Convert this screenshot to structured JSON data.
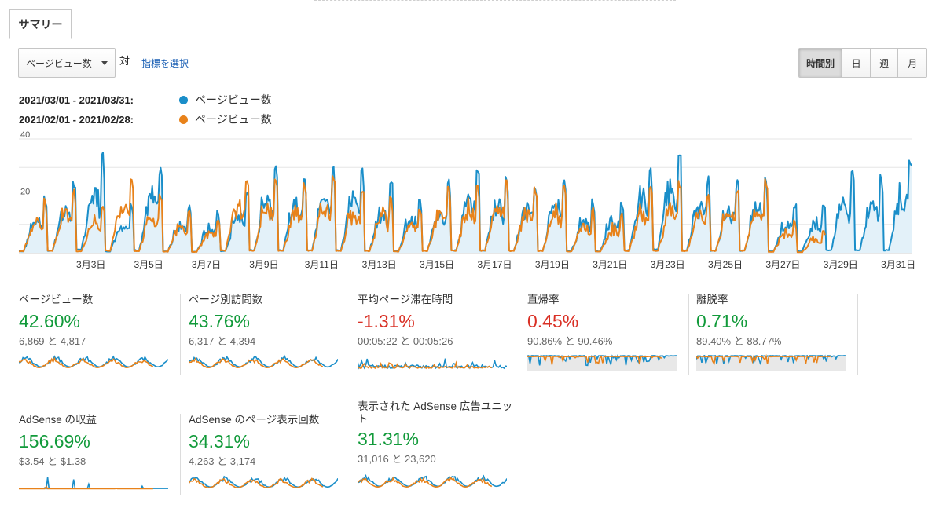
{
  "tabs": [
    {
      "label": "サマリー",
      "active": true
    }
  ],
  "controls": {
    "metric": "ページビュー数",
    "vs": "対",
    "select_metric": "指標を選択",
    "periods": [
      {
        "label": "時間別",
        "active": true
      },
      {
        "label": "日",
        "active": false
      },
      {
        "label": "週",
        "active": false
      },
      {
        "label": "月",
        "active": false
      }
    ]
  },
  "legend": [
    {
      "range": "2021/03/01 - 2021/03/31:",
      "name": "ページビュー数",
      "color": "#1a8ec9"
    },
    {
      "range": "2021/02/01 - 2021/02/28:",
      "name": "ページビュー数",
      "color": "#e8821a"
    }
  ],
  "chart_data": {
    "type": "line",
    "title": "",
    "granularity": "hourly",
    "xlabel": "",
    "ylabel": "",
    "y_ticks": [
      "40",
      "20"
    ],
    "ylim": [
      0,
      40
    ],
    "x_tick_labels": [
      "3月3日",
      "3月5日",
      "3月7日",
      "3月9日",
      "3月11日",
      "3月13日",
      "3月15日",
      "3月17日",
      "3月19日",
      "3月21日",
      "3月23日",
      "3月25日",
      "3月27日",
      "3月29日",
      "3月31日"
    ],
    "grid": true,
    "series": [
      {
        "name": "ページビュー数",
        "period": "2021/03/01 - 2021/03/31",
        "color": "#1a8ec9",
        "fill": true,
        "daily_peaks": [
          20,
          26,
          36,
          18,
          32,
          17,
          15,
          22,
          34,
          30,
          34,
          32,
          26,
          20,
          26,
          30,
          30,
          26,
          28,
          20,
          19,
          33,
          40,
          28,
          26,
          27,
          18,
          18,
          30,
          30,
          34
        ]
      },
      {
        "name": "ページビュー数",
        "period": "2021/02/01 - 2021/02/28",
        "color": "#e8821a",
        "fill": false,
        "daily_peaks": [
          20,
          24,
          18,
          28,
          22,
          16,
          12,
          28,
          28,
          25,
          28,
          24,
          22,
          17,
          24,
          27,
          28,
          24,
          24,
          16,
          14,
          24,
          26,
          22,
          24,
          26,
          12,
          8
        ]
      }
    ]
  },
  "cards": [
    {
      "label": "ページビュー数",
      "pct": "42.60%",
      "trend": "up",
      "cmp": "6,869 と 4,817",
      "spark": "osc"
    },
    {
      "label": "ページ別訪問数",
      "pct": "43.76%",
      "trend": "up",
      "cmp": "6,317 と 4,394",
      "spark": "osc"
    },
    {
      "label": "平均ページ滞在時間",
      "pct": "-1.31%",
      "trend": "down",
      "cmp": "00:05:22 と 00:05:26",
      "spark": "low"
    },
    {
      "label": "直帰率",
      "pct": "0.45%",
      "trend": "down",
      "cmp": "90.86% と 90.46%",
      "spark": "high"
    },
    {
      "label": "離脱率",
      "pct": "0.71%",
      "trend": "up",
      "cmp": "89.40% と 88.77%",
      "spark": "high"
    },
    {
      "label": "AdSense の収益",
      "pct": "156.69%",
      "trend": "up",
      "cmp": "$3.54 と $1.38",
      "spark": "flat"
    },
    {
      "label": "AdSense のページ表示回数",
      "pct": "34.31%",
      "trend": "up",
      "cmp": "4,263 と 3,174",
      "spark": "osc"
    },
    {
      "label": "表示された AdSense 広告ユニット",
      "pct": "31.31%",
      "trend": "up",
      "cmp": "31,016 と 23,620",
      "spark": "osc"
    }
  ]
}
